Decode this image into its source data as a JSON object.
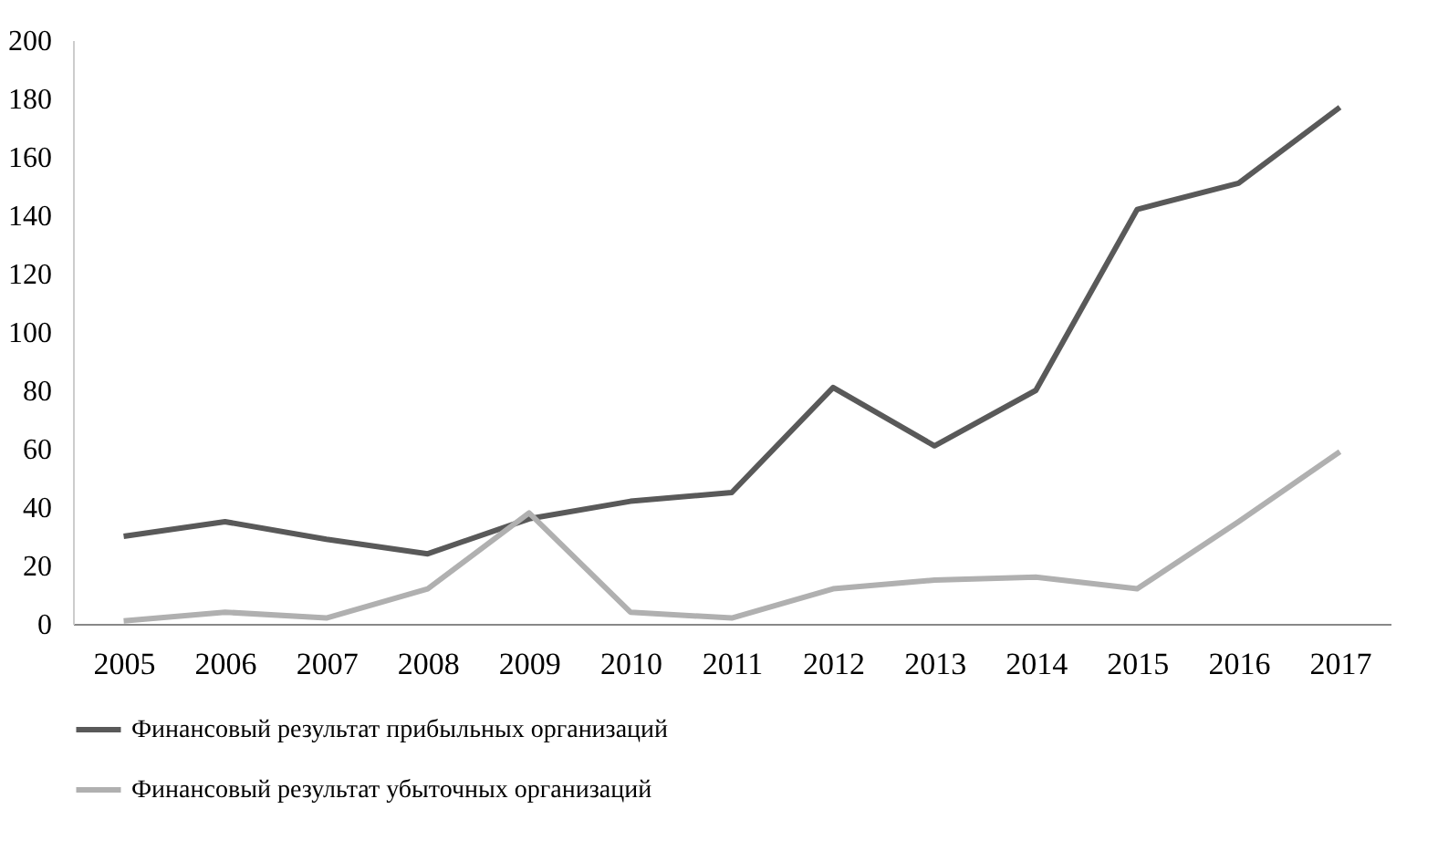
{
  "chart_data": {
    "type": "line",
    "categories": [
      "2005",
      "2006",
      "2007",
      "2008",
      "2009",
      "2010",
      "2011",
      "2012",
      "2013",
      "2014",
      "2015",
      "2016",
      "2017"
    ],
    "series": [
      {
        "name": "Финансовый результат прибыльных организаций",
        "color": "#595959",
        "values": [
          30,
          35,
          29,
          24,
          36,
          42,
          45,
          81,
          61,
          80,
          142,
          151,
          177
        ]
      },
      {
        "name": "Финансовый результат убыточных организаций",
        "color": "#b0b0b0",
        "values": [
          1,
          4,
          2,
          12,
          38,
          4,
          2,
          12,
          15,
          16,
          12,
          35,
          59
        ]
      }
    ],
    "ylim": [
      0,
      200
    ],
    "yticks": [
      0,
      20,
      40,
      60,
      80,
      100,
      120,
      140,
      160,
      180,
      200
    ],
    "grid": false,
    "legend": "bottom",
    "marker": "none",
    "line_style": "solid"
  }
}
